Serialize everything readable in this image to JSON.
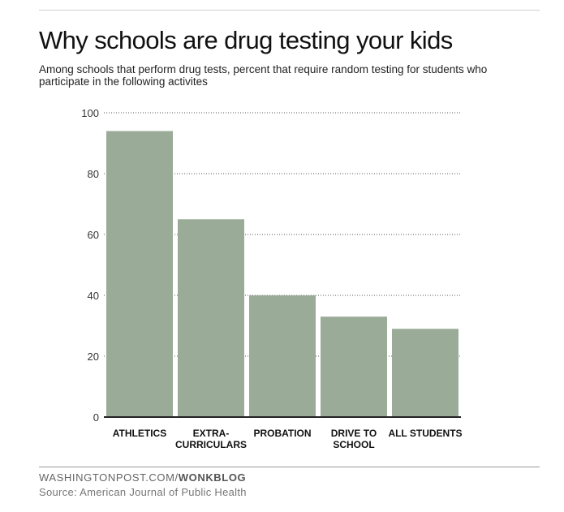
{
  "header": {
    "title": "Why schools are drug testing your kids",
    "subtitle": "Among schools that perform drug tests, percent that require random testing for students who participate in the following activites"
  },
  "footer": {
    "brand_prefix": "WASHINGTONPOST.COM/",
    "brand_suffix": "WONKBLOG",
    "source": "Source: American Journal of Public Health"
  },
  "colors": {
    "bar": "#9aab98",
    "gridline": "#555555",
    "axis": "#222222",
    "text": "#222222"
  },
  "chart_data": {
    "type": "bar",
    "title": "Why schools are drug testing your kids",
    "xlabel": "",
    "ylabel": "",
    "ylim": [
      0,
      100
    ],
    "yticks": [
      0,
      20,
      40,
      60,
      80,
      100
    ],
    "grid": true,
    "categories": [
      [
        "ATHLETICS"
      ],
      [
        "EXTRA-",
        "CURRICULARS"
      ],
      [
        "PROBATION"
      ],
      [
        "DRIVE TO",
        "SCHOOL"
      ],
      [
        "ALL STUDENTS"
      ]
    ],
    "values": [
      94,
      65,
      40,
      33,
      29
    ]
  }
}
